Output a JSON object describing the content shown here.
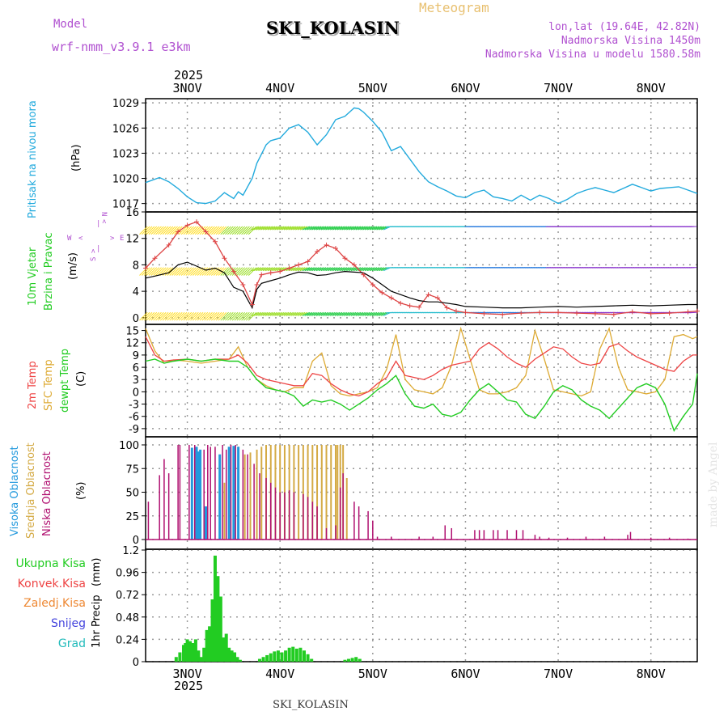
{
  "header": {
    "model_label": "Model",
    "model_name": "wrf-nmm_v3.9.1  e3km",
    "title": "SKI_KOLASIN",
    "meteogram": "Meteogram",
    "lonlat": "lon,lat (19.64E, 42.82N)",
    "elevation": "Nadmorska Visina 1450m",
    "model_elevation": "Nadmorska Visina u modelu 1580.58m"
  },
  "footer": {
    "station": "SKI_KOLASIN",
    "credit": "made by Angel"
  },
  "colors": {
    "pressure": "#22aadd",
    "wind_label": "#22cc22",
    "temp2m": "#ee4444",
    "sfc": "#ddaa33",
    "dew": "#22cc22",
    "low_cloud": "#b01070",
    "mid_cloud": "#d4aa44",
    "high_cloud": "#2299dd",
    "precip": "#22cc22",
    "purple": "#b050d0"
  },
  "chart_data": {
    "type": "meteogram",
    "x_unit": "days from 3NOV 00UTC",
    "x_range": [
      -0.45,
      5.5
    ],
    "top_year": "2025",
    "bottom_year": "2025",
    "days": [
      "3NOV",
      "4NOV",
      "5NOV",
      "6NOV",
      "7NOV",
      "8NOV"
    ],
    "pressure": {
      "labels": [
        "Pritisak na nivou mora",
        "(hPa)"
      ],
      "ylim": [
        1016,
        1029.5
      ],
      "yticks": [
        "1017",
        "1020",
        "1023",
        "1026",
        "1029"
      ],
      "x": [
        -0.45,
        -0.3,
        -0.2,
        -0.1,
        0,
        0.1,
        0.2,
        0.3,
        0.4,
        0.5,
        0.55,
        0.6,
        0.7,
        0.75,
        0.8,
        0.85,
        0.9,
        1,
        1.1,
        1.2,
        1.3,
        1.4,
        1.5,
        1.6,
        1.7,
        1.8,
        1.85,
        1.9,
        2,
        2.1,
        2.2,
        2.3,
        2.4,
        2.5,
        2.6,
        2.7,
        2.8,
        2.9,
        3,
        3.1,
        3.2,
        3.3,
        3.4,
        3.5,
        3.6,
        3.7,
        3.8,
        3.9,
        4,
        4.1,
        4.2,
        4.3,
        4.4,
        4.5,
        4.6,
        4.7,
        4.8,
        4.9,
        5,
        5.1,
        5.2,
        5.3,
        5.4,
        5.5
      ],
      "values": [
        1019.5,
        1020.1,
        1019.6,
        1018.8,
        1017.8,
        1017.1,
        1017.0,
        1017.3,
        1018.3,
        1017.6,
        1018.4,
        1018.0,
        1020.0,
        1021.8,
        1022.9,
        1024.0,
        1024.5,
        1024.8,
        1026.0,
        1026.4,
        1025.5,
        1024.0,
        1025.2,
        1027.0,
        1027.4,
        1028.4,
        1028.3,
        1027.9,
        1026.8,
        1025.5,
        1023.3,
        1023.8,
        1022.3,
        1020.8,
        1019.6,
        1019.0,
        1018.5,
        1017.9,
        1017.7,
        1018.3,
        1018.6,
        1017.8,
        1017.6,
        1017.3,
        1018.0,
        1017.4,
        1018.0,
        1017.6,
        1017.0,
        1017.5,
        1018.2,
        1018.6,
        1018.9,
        1018.6,
        1018.3,
        1018.8,
        1019.3,
        1018.9,
        1018.5,
        1018.8,
        1018.9,
        1019.0,
        1018.6,
        1018.2
      ]
    },
    "wind": {
      "labels": [
        "10m Vjetar",
        "Brzina i Pravac",
        "(m/s)"
      ],
      "compass": [
        "N",
        "S",
        "W",
        "E",
        "|",
        "<",
        ">"
      ],
      "ylim": [
        -1,
        16
      ],
      "yticks": [
        "0",
        "4",
        "8",
        "12",
        "16"
      ],
      "speed_x": [
        -0.45,
        -0.35,
        -0.2,
        -0.1,
        0,
        0.1,
        0.2,
        0.3,
        0.4,
        0.5,
        0.6,
        0.7,
        0.75,
        0.8,
        0.9,
        1,
        1.1,
        1.2,
        1.3,
        1.4,
        1.5,
        1.6,
        1.7,
        1.8,
        1.9,
        2,
        2.1,
        2.2,
        2.3,
        2.4,
        2.5,
        2.6,
        2.7,
        2.8,
        2.9,
        3,
        3.2,
        3.4,
        3.6,
        3.8,
        4,
        4.2,
        4.4,
        4.6,
        4.8,
        5,
        5.2,
        5.4,
        5.5
      ],
      "speed": [
        6.0,
        6.3,
        6.8,
        8.0,
        8.4,
        7.8,
        7.2,
        7.5,
        6.8,
        4.6,
        4.0,
        1.5,
        4.3,
        5.2,
        5.6,
        6.0,
        6.5,
        6.9,
        6.8,
        6.4,
        6.5,
        6.8,
        7.0,
        6.9,
        6.8,
        6.0,
        5.0,
        4.0,
        3.5,
        3.0,
        2.6,
        2.4,
        2.4,
        2.2,
        2.0,
        1.7,
        1.6,
        1.5,
        1.5,
        1.6,
        1.7,
        1.6,
        1.7,
        1.8,
        1.9,
        1.8,
        1.9,
        2.0,
        2.0
      ],
      "gust": [
        7.5,
        9.0,
        11.0,
        13.0,
        14.0,
        14.5,
        13.0,
        11.5,
        9.0,
        7.0,
        5.0,
        2.0,
        5.0,
        6.5,
        6.8,
        7.0,
        7.5,
        8.0,
        8.5,
        10.0,
        11.0,
        10.5,
        9.0,
        8.0,
        6.5,
        5.0,
        3.8,
        3.0,
        2.2,
        1.8,
        1.6,
        3.5,
        3.0,
        1.5,
        1.0,
        0.8,
        0.6,
        0.5,
        0.7,
        0.8,
        0.8,
        0.7,
        0.6,
        0.5,
        0.9,
        0.6,
        0.7,
        0.9,
        1.0
      ]
    },
    "temperature": {
      "labels": [
        "2m Temp",
        "SFC Temp",
        "dewpt Temp",
        "(C)"
      ],
      "ylim": [
        -11,
        16.5
      ],
      "yticks": [
        "-9",
        "-6",
        "-3",
        "0",
        "3",
        "6",
        "9",
        "12",
        "15"
      ],
      "x": [
        -0.45,
        -0.35,
        -0.25,
        -0.15,
        0,
        0.15,
        0.3,
        0.45,
        0.55,
        0.65,
        0.75,
        0.85,
        0.95,
        1.05,
        1.15,
        1.25,
        1.35,
        1.45,
        1.55,
        1.65,
        1.75,
        1.85,
        1.95,
        2.05,
        2.15,
        2.25,
        2.35,
        2.45,
        2.55,
        2.65,
        2.75,
        2.85,
        2.95,
        3.05,
        3.15,
        3.25,
        3.35,
        3.45,
        3.55,
        3.65,
        3.75,
        3.85,
        3.95,
        4.05,
        4.15,
        4.25,
        4.35,
        4.45,
        4.55,
        4.65,
        4.75,
        4.85,
        4.95,
        5.05,
        5.15,
        5.25,
        5.35,
        5.45,
        5.5
      ],
      "t2m": [
        13.5,
        9.0,
        7.5,
        7.8,
        8.0,
        7.5,
        8.0,
        8.0,
        9.0,
        7.0,
        4.0,
        3.0,
        2.5,
        2.0,
        1.5,
        1.5,
        4.5,
        4.0,
        2.0,
        0.5,
        -0.5,
        -1.0,
        0.0,
        2.0,
        3.5,
        7.5,
        4.0,
        3.5,
        3.0,
        4.0,
        5.5,
        6.5,
        7.0,
        7.5,
        10.5,
        12.0,
        10.5,
        8.5,
        7.0,
        6.0,
        8.0,
        9.5,
        11.0,
        10.5,
        8.5,
        7.0,
        6.5,
        7.0,
        11.0,
        11.8,
        10.0,
        8.5,
        7.5,
        6.5,
        5.5,
        5.0,
        7.5,
        9.0,
        9.0
      ],
      "sfc": [
        15.5,
        10.0,
        7.0,
        7.8,
        7.5,
        7.0,
        7.5,
        8.0,
        11.0,
        6.0,
        3.0,
        1.5,
        0.5,
        0.0,
        1.0,
        1.0,
        7.5,
        9.5,
        1.5,
        -0.5,
        -1.0,
        -0.5,
        0.0,
        1.0,
        5.5,
        14.0,
        3.0,
        0.5,
        0.0,
        -0.5,
        1.0,
        6.5,
        15.5,
        8.0,
        0.5,
        -0.5,
        -0.5,
        0.0,
        1.0,
        4.0,
        15.0,
        8.0,
        0.5,
        0.0,
        -0.5,
        -1.0,
        0.0,
        10.5,
        15.5,
        6.0,
        0.5,
        0.0,
        -0.5,
        0.0,
        3.0,
        13.5,
        14.0,
        13.0,
        13.5
      ],
      "dew": [
        7.5,
        8.0,
        7.0,
        7.5,
        8.0,
        7.5,
        8.0,
        7.5,
        7.5,
        6.0,
        3.0,
        1.0,
        0.5,
        0.0,
        -1.0,
        -3.5,
        -2.0,
        -2.5,
        -2.0,
        -3.0,
        -4.5,
        -3.0,
        -1.5,
        0.5,
        2.0,
        4.0,
        -0.5,
        -3.5,
        -4.0,
        -3.0,
        -5.5,
        -6.0,
        -5.0,
        -2.0,
        0.5,
        2.0,
        0.0,
        -2.0,
        -2.5,
        -5.5,
        -6.5,
        -3.5,
        0.0,
        1.5,
        0.5,
        -2.0,
        -3.5,
        -4.5,
        -6.5,
        -4.0,
        -1.5,
        1.0,
        2.0,
        1.0,
        -3.0,
        -9.5,
        -6.0,
        -3.0,
        4.5
      ]
    },
    "clouds": {
      "labels": [
        "Visoka Oblacnost",
        "Srednja Oblacnost",
        "Niska Oblacnost",
        "(%)"
      ],
      "ylim": [
        0,
        100
      ],
      "yticks": [
        "0",
        "25",
        "50",
        "75",
        "100"
      ],
      "low": [
        [
          -0.42,
          40
        ],
        [
          -0.3,
          68
        ],
        [
          -0.25,
          85
        ],
        [
          -0.2,
          70
        ],
        [
          -0.1,
          100
        ],
        [
          -0.08,
          100
        ],
        [
          0.02,
          100
        ],
        [
          0.05,
          97
        ],
        [
          0.08,
          100
        ],
        [
          0.12,
          60
        ],
        [
          0.18,
          95
        ],
        [
          0.22,
          100
        ],
        [
          0.25,
          98
        ],
        [
          0.3,
          98
        ],
        [
          0.38,
          100
        ],
        [
          0.42,
          95
        ],
        [
          0.47,
          100
        ],
        [
          0.52,
          100
        ],
        [
          0.55,
          98
        ],
        [
          0.6,
          95
        ],
        [
          0.65,
          90
        ],
        [
          0.72,
          80
        ],
        [
          0.78,
          70
        ],
        [
          0.85,
          65
        ],
        [
          0.9,
          60
        ],
        [
          0.95,
          55
        ],
        [
          1.0,
          50
        ],
        [
          1.05,
          50
        ],
        [
          1.1,
          52
        ],
        [
          1.15,
          50
        ],
        [
          1.25,
          48
        ],
        [
          1.3,
          45
        ],
        [
          1.35,
          40
        ],
        [
          1.4,
          35
        ],
        [
          1.5,
          12
        ],
        [
          1.6,
          15
        ],
        [
          1.65,
          55
        ],
        [
          1.68,
          70
        ],
        [
          1.8,
          40
        ],
        [
          1.85,
          35
        ],
        [
          1.95,
          30
        ],
        [
          2.0,
          20
        ],
        [
          2.05,
          3
        ],
        [
          2.2,
          3
        ],
        [
          2.5,
          3
        ],
        [
          2.65,
          3
        ],
        [
          2.78,
          15
        ],
        [
          2.85,
          12
        ],
        [
          3.1,
          10
        ],
        [
          3.15,
          10
        ],
        [
          3.2,
          10
        ],
        [
          3.3,
          10
        ],
        [
          3.35,
          10
        ],
        [
          3.45,
          10
        ],
        [
          3.55,
          10
        ],
        [
          3.62,
          10
        ],
        [
          3.75,
          5
        ],
        [
          3.8,
          3
        ],
        [
          3.9,
          2
        ],
        [
          4.1,
          2
        ],
        [
          4.3,
          3
        ],
        [
          4.5,
          3
        ],
        [
          4.75,
          5
        ],
        [
          4.78,
          8
        ],
        [
          5.0,
          2
        ],
        [
          5.2,
          2
        ],
        [
          5.4,
          1
        ]
      ],
      "mid": [
        [
          0.4,
          60
        ],
        [
          0.45,
          70
        ],
        [
          0.5,
          80
        ],
        [
          0.55,
          85
        ],
        [
          0.62,
          90
        ],
        [
          0.68,
          92
        ],
        [
          0.75,
          95
        ],
        [
          0.8,
          98
        ],
        [
          0.85,
          100
        ],
        [
          0.9,
          100
        ],
        [
          0.95,
          100
        ],
        [
          1.0,
          100
        ],
        [
          1.05,
          100
        ],
        [
          1.1,
          100
        ],
        [
          1.15,
          100
        ],
        [
          1.2,
          100
        ],
        [
          1.25,
          100
        ],
        [
          1.3,
          100
        ],
        [
          1.35,
          100
        ],
        [
          1.4,
          100
        ],
        [
          1.45,
          100
        ],
        [
          1.5,
          100
        ],
        [
          1.55,
          100
        ],
        [
          1.6,
          100
        ],
        [
          1.62,
          100
        ],
        [
          1.65,
          100
        ],
        [
          1.68,
          100
        ],
        [
          1.72,
          65
        ]
      ],
      "high": [
        [
          0.05,
          97
        ],
        [
          0.1,
          98
        ],
        [
          0.12,
          93
        ],
        [
          0.14,
          95
        ],
        [
          0.2,
          35
        ],
        [
          0.35,
          90
        ],
        [
          0.45,
          98
        ],
        [
          0.5,
          99
        ],
        [
          0.55,
          98
        ]
      ]
    },
    "precip": {
      "labels": [
        "Ukupna Kisa",
        "Konvek.Kisa",
        "Zaledj.Kisa",
        "Snijeg",
        "Grad",
        "1hr Precip",
        "(mm)"
      ],
      "ylim": [
        0,
        1.2
      ],
      "yticks": [
        "0",
        "0.24",
        "0.48",
        "0.72",
        "0.96",
        "1.2"
      ],
      "bars": [
        [
          -0.12,
          0.05
        ],
        [
          -0.08,
          0.1
        ],
        [
          -0.04,
          0.18
        ],
        [
          -0.02,
          0.2
        ],
        [
          0.0,
          0.24
        ],
        [
          0.03,
          0.22
        ],
        [
          0.06,
          0.2
        ],
        [
          0.09,
          0.24
        ],
        [
          0.12,
          0.12
        ],
        [
          0.15,
          0.05
        ],
        [
          0.18,
          0.15
        ],
        [
          0.21,
          0.34
        ],
        [
          0.24,
          0.38
        ],
        [
          0.27,
          0.67
        ],
        [
          0.3,
          1.14
        ],
        [
          0.33,
          0.92
        ],
        [
          0.36,
          0.7
        ],
        [
          0.39,
          0.26
        ],
        [
          0.42,
          0.3
        ],
        [
          0.45,
          0.15
        ],
        [
          0.48,
          0.12
        ],
        [
          0.51,
          0.1
        ],
        [
          0.54,
          0.05
        ],
        [
          0.57,
          0.02
        ],
        [
          0.78,
          0.03
        ],
        [
          0.82,
          0.05
        ],
        [
          0.86,
          0.07
        ],
        [
          0.9,
          0.09
        ],
        [
          0.94,
          0.11
        ],
        [
          0.98,
          0.12
        ],
        [
          1.02,
          0.1
        ],
        [
          1.06,
          0.12
        ],
        [
          1.1,
          0.15
        ],
        [
          1.14,
          0.16
        ],
        [
          1.18,
          0.14
        ],
        [
          1.22,
          0.15
        ],
        [
          1.26,
          0.12
        ],
        [
          1.3,
          0.08
        ],
        [
          1.34,
          0.03
        ],
        [
          1.7,
          0.02
        ],
        [
          1.74,
          0.03
        ],
        [
          1.78,
          0.04
        ],
        [
          1.82,
          0.05
        ],
        [
          1.86,
          0.03
        ]
      ]
    }
  }
}
